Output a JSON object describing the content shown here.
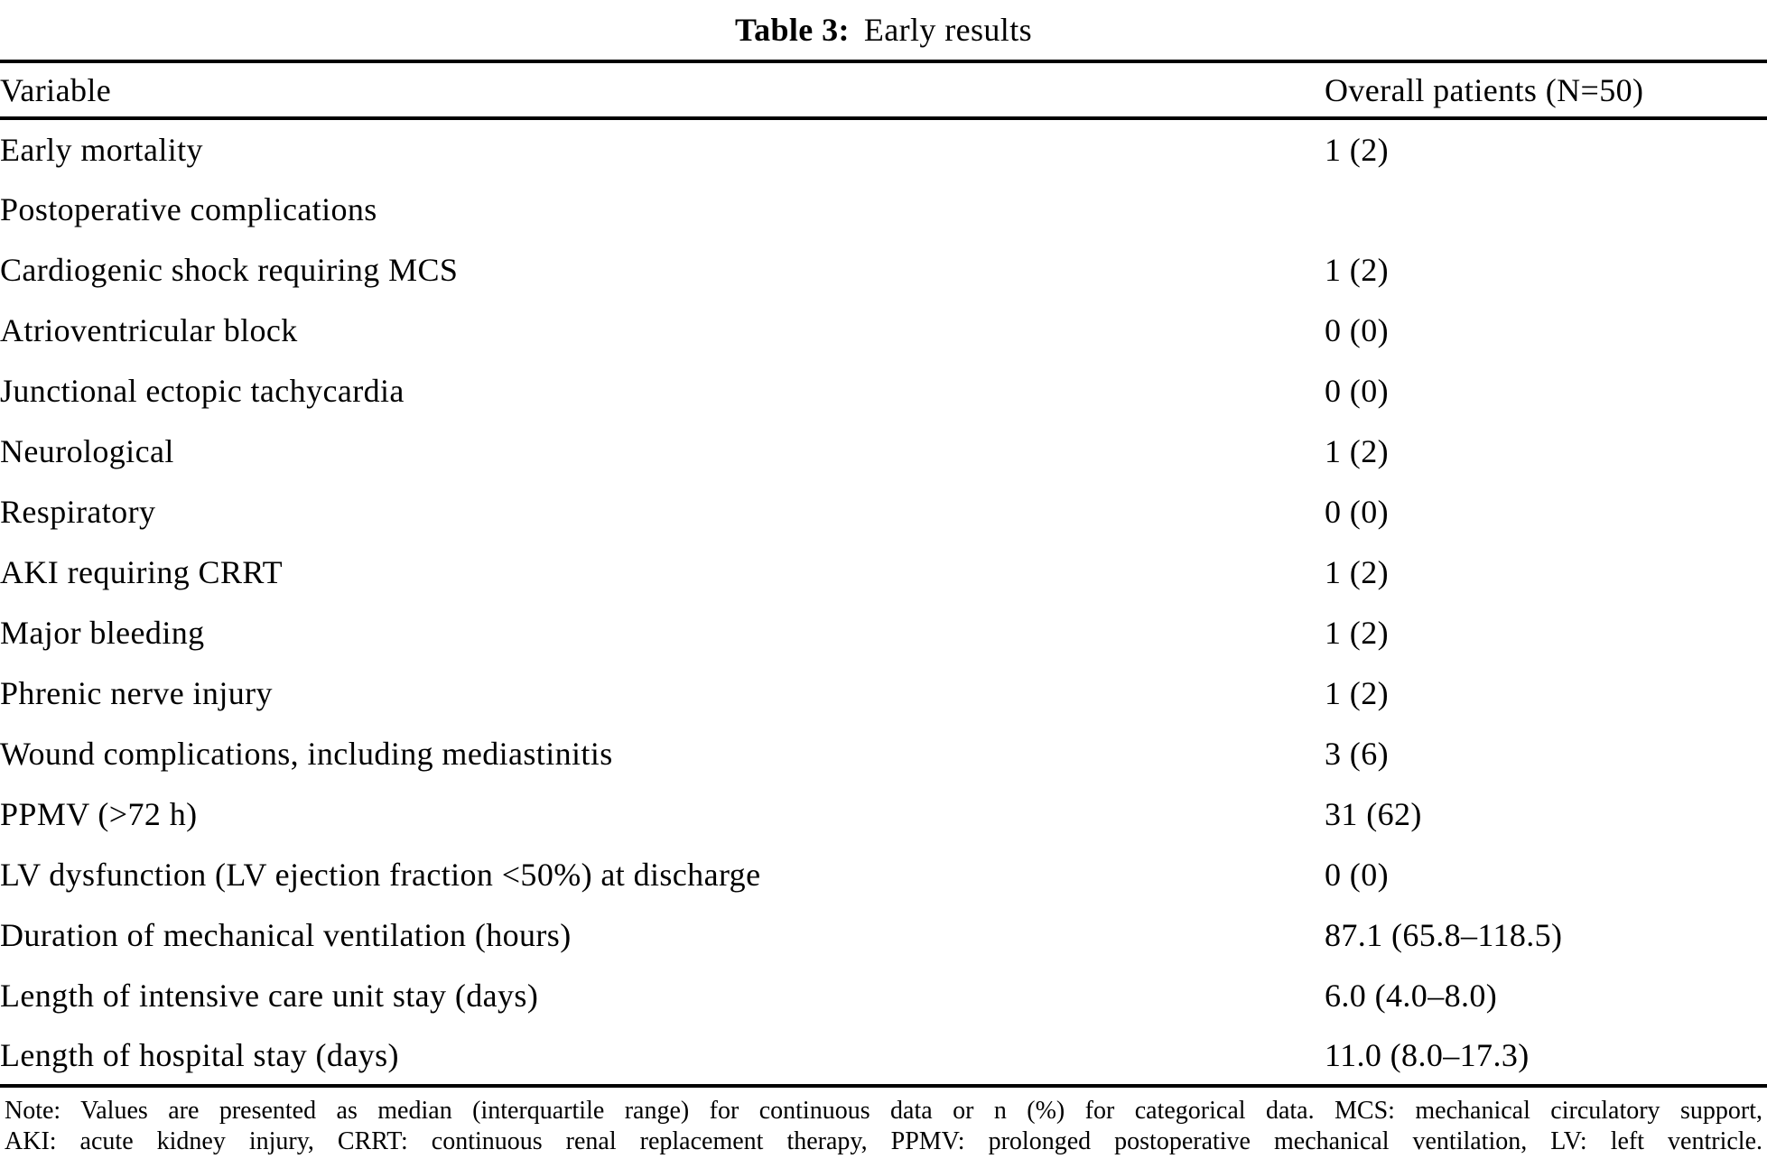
{
  "title": {
    "label": "Table 3:",
    "text": "Early results"
  },
  "table": {
    "header": {
      "variable": "Variable",
      "value": "Overall patients (N=50)"
    },
    "rows": [
      {
        "variable": "Early mortality",
        "value": "1 (2)"
      },
      {
        "variable": "Postoperative complications",
        "value": ""
      },
      {
        "variable": "Cardiogenic shock requiring MCS",
        "value": "1 (2)"
      },
      {
        "variable": "Atrioventricular block",
        "value": "0 (0)"
      },
      {
        "variable": "Junctional ectopic tachycardia",
        "value": "0 (0)"
      },
      {
        "variable": "Neurological",
        "value": "1 (2)"
      },
      {
        "variable": "Respiratory",
        "value": "0 (0)"
      },
      {
        "variable": "AKI requiring CRRT",
        "value": "1 (2)"
      },
      {
        "variable": "Major bleeding",
        "value": "1 (2)"
      },
      {
        "variable": "Phrenic nerve injury",
        "value": "1 (2)"
      },
      {
        "variable": "Wound complications, including mediastinitis",
        "value": "3 (6)"
      },
      {
        "variable": "PPMV (>72 h)",
        "value": "31 (62)"
      },
      {
        "variable": "LV dysfunction (LV ejection fraction <50%) at discharge",
        "value": "0 (0)"
      },
      {
        "variable": "Duration of mechanical ventilation (hours)",
        "value": "87.1 (65.8–118.5)"
      },
      {
        "variable": "Length of intensive care unit stay (days)",
        "value": "6.0 (4.0–8.0)"
      },
      {
        "variable": "Length of hospital stay (days)",
        "value": "11.0 (8.0–17.3)"
      }
    ]
  },
  "note": {
    "line1": "Note: Values are presented as median (interquartile range) for continuous data or n (%) for categorical data. MCS: mechanical circulatory support,",
    "line2": "AKI: acute kidney injury, CRRT: continuous renal replacement therapy, PPMV: prolonged postoperative mechanical ventilation, LV: left ventricle."
  },
  "colors": {
    "text": "#000000",
    "background": "#ffffff",
    "rule": "#000000"
  },
  "chart_data": {
    "type": "table",
    "title": "Table 3: Early results",
    "columns": [
      "Variable",
      "Overall patients (N=50)"
    ],
    "rows": [
      [
        "Early mortality",
        "1 (2)"
      ],
      [
        "Postoperative complications",
        ""
      ],
      [
        "Cardiogenic shock requiring MCS",
        "1 (2)"
      ],
      [
        "Atrioventricular block",
        "0 (0)"
      ],
      [
        "Junctional ectopic tachycardia",
        "0 (0)"
      ],
      [
        "Neurological",
        "1 (2)"
      ],
      [
        "Respiratory",
        "0 (0)"
      ],
      [
        "AKI requiring CRRT",
        "1 (2)"
      ],
      [
        "Major bleeding",
        "1 (2)"
      ],
      [
        "Phrenic nerve injury",
        "1 (2)"
      ],
      [
        "Wound complications, including mediastinitis",
        "3 (6)"
      ],
      [
        "PPMV (>72 h)",
        "31 (62)"
      ],
      [
        "LV dysfunction (LV ejection fraction <50%) at discharge",
        "0 (0)"
      ],
      [
        "Duration of mechanical ventilation (hours)",
        "87.1 (65.8–118.5)"
      ],
      [
        "Length of intensive care unit stay (days)",
        "6.0 (4.0–8.0)"
      ],
      [
        "Length of hospital stay (days)",
        "11.0 (8.0–17.3)"
      ]
    ]
  }
}
